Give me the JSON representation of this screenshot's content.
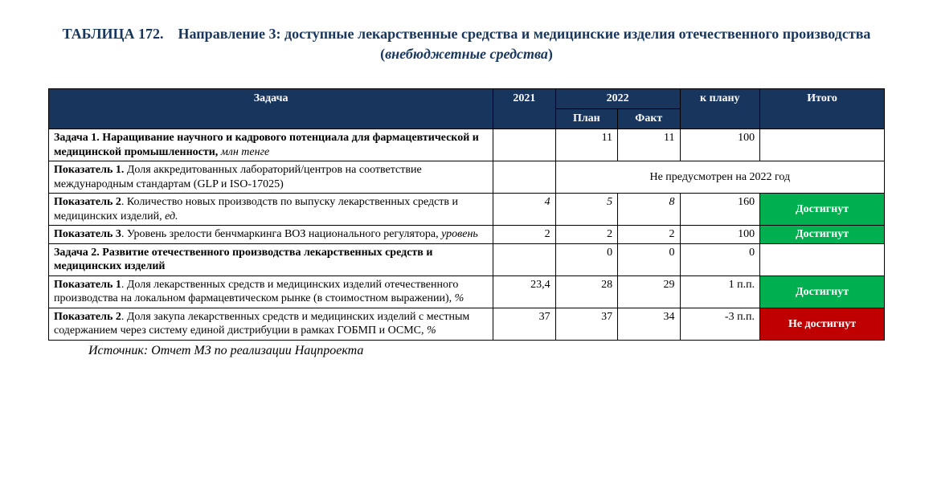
{
  "title": {
    "label": "ТАБЛИЦА 172.",
    "text": "Направление 3: доступные лекарственные средства и медицинские изделия отечественного производства",
    "paren_prefix": "(",
    "paren_italic": "внебюджетные средства",
    "paren_suffix": ")"
  },
  "headers": {
    "task": "Задача",
    "y2021": "2021",
    "y2022": "2022",
    "kplanu": "к плану",
    "itogo": "Итого",
    "plan": "План",
    "fact": "Факт"
  },
  "rows": {
    "r1": {
      "bold": "Задача 1. Наращивание научного и кадрового потенциала для фармацевтической и медицинской промышленности,",
      "unit": "млн тенге",
      "y2021": "",
      "plan": "11",
      "fact": "11",
      "kplanu": "100",
      "itogo": ""
    },
    "r2": {
      "bold": "Показатель 1.",
      "rest": " Доля аккредитованных лабораторий/центров на соответствие международным стандартам (GLP и ISO-17025)",
      "y2021": "",
      "merged_note": "Не предусмотрен на 2022 год"
    },
    "r3": {
      "bold": "Показатель 2",
      "rest": ". Количество новых производств по выпуску лекарственных средств и медицинских изделий, ",
      "unit": "ед.",
      "y2021": "4",
      "plan": "5",
      "fact": "8",
      "kplanu": "160",
      "itogo": "Достигнут"
    },
    "r4": {
      "bold": "Показатель 3",
      "rest": ". Уровень зрелости бенчмаркинга ВОЗ национального регулятора, ",
      "unit": "уровень",
      "y2021": "2",
      "plan": "2",
      "fact": "2",
      "kplanu": "100",
      "itogo": "Достигнут"
    },
    "r5": {
      "bold": "Задача 2. Развитие отечественного производства лекарственных средств и медицинских изделий",
      "y2021": "",
      "plan": "0",
      "fact": "0",
      "kplanu": "0",
      "itogo": ""
    },
    "r6": {
      "bold": "Показатель 1",
      "rest": ". Доля лекарственных средств и медицинских изделий отечественного производства на локальном фармацевтическом рынке (в стоимостном выражении), ",
      "unit": "%",
      "y2021": "23,4",
      "plan": "28",
      "fact": "29",
      "kplanu": "1 п.п.",
      "itogo": "Достигнут"
    },
    "r7": {
      "bold": "Показатель 2",
      "rest": ". Доля закупа лекарственных средств и медицинских изделий с местным содержанием через систему единой дистрибуции в рамках ГОБМП и ОСМС, ",
      "unit": "%",
      "y2021": "37",
      "plan": "37",
      "fact": "34",
      "kplanu": "-3 п.п.",
      "itogo": "Не достигнут"
    }
  },
  "source": "Источник: Отчет МЗ по реализации Нацпроекта",
  "colors": {
    "header_bg": "#18365d",
    "green": "#00b050",
    "red": "#c00000"
  }
}
